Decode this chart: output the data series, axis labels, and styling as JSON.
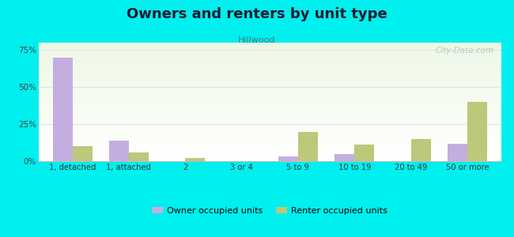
{
  "title": "Owners and renters by unit type",
  "subtitle": "Hillwood",
  "categories": [
    "1, detached",
    "1, attached",
    "2",
    "3 or 4",
    "5 to 9",
    "10 to 19",
    "20 to 49",
    "50 or more"
  ],
  "owner_values": [
    70.0,
    14.0,
    0.0,
    0.0,
    3.0,
    5.0,
    0.0,
    12.0
  ],
  "renter_values": [
    10.0,
    6.0,
    2.0,
    0.0,
    20.0,
    11.0,
    15.0,
    40.0
  ],
  "owner_color": "#c4aee0",
  "renter_color": "#bcc87a",
  "background_color": "#00efef",
  "ylim": [
    0,
    80
  ],
  "yticks": [
    0,
    25,
    50,
    75
  ],
  "ytick_labels": [
    "0%",
    "25%",
    "50%",
    "75%"
  ],
  "bar_width": 0.35,
  "title_fontsize": 13,
  "subtitle_fontsize": 8,
  "title_color": "#1a1a2e",
  "subtitle_color": "#4a7a7a",
  "legend_label_owner": "Owner occupied units",
  "legend_label_renter": "Renter occupied units",
  "watermark": "City-Data.com"
}
